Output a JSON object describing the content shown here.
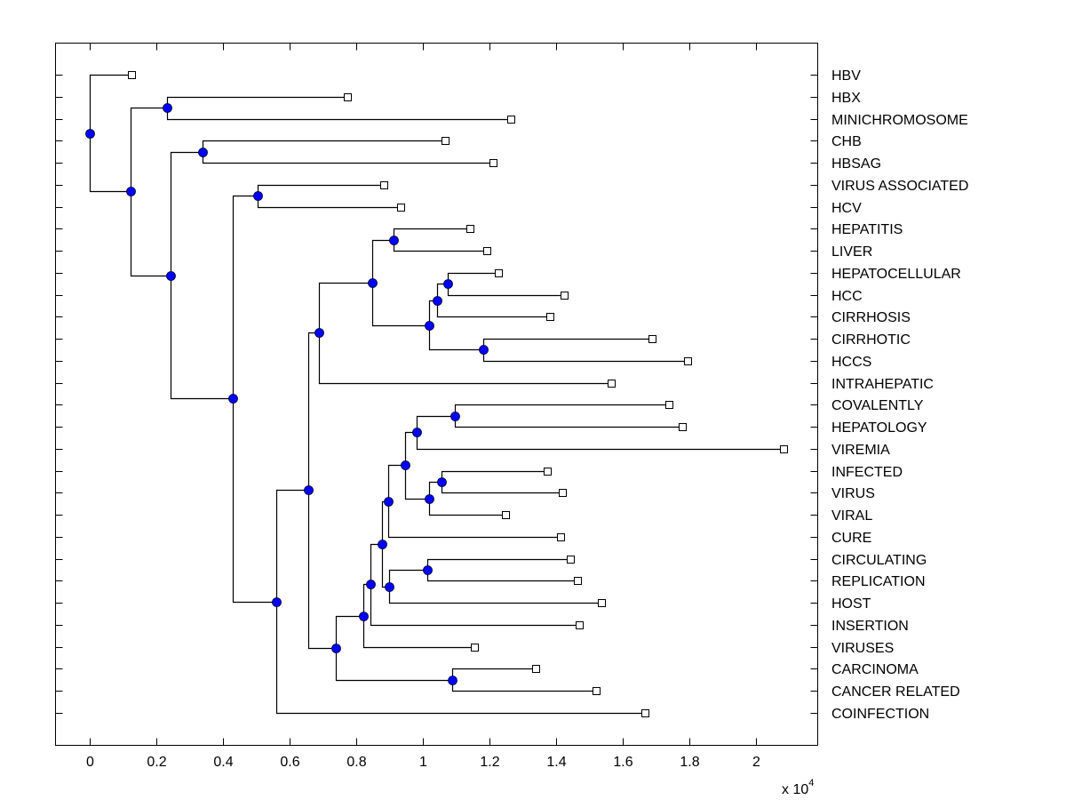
{
  "chart_data": {
    "type": "dendrogram",
    "title": "",
    "xlabel": "",
    "x_multiplier": "x 10^4",
    "x_multiplier_base": "x 10",
    "x_multiplier_exp": "4",
    "xlim": [
      -0.1,
      2.19
    ],
    "x_ticks": [
      0,
      0.2,
      0.4,
      0.6,
      0.8,
      1,
      1.2,
      1.4,
      1.6,
      1.8,
      2
    ],
    "x_tick_labels": [
      "0",
      "0.2",
      "0.4",
      "0.6",
      "0.8",
      "1",
      "1.2",
      "1.4",
      "1.6",
      "1.8",
      "2"
    ],
    "grid": false,
    "leaf_color": "#ffffff",
    "node_color": "#0000ff",
    "line_color": "#000000",
    "leaves": [
      {
        "id": "HBV",
        "label": "HBV",
        "x": 0.125
      },
      {
        "id": "HBX",
        "label": "HBX",
        "x": 0.773
      },
      {
        "id": "MINI",
        "label": "MINICHROMOSOME",
        "x": 1.264
      },
      {
        "id": "CHB",
        "label": "CHB",
        "x": 1.067
      },
      {
        "id": "HBSAG",
        "label": "HBSAG",
        "x": 1.211
      },
      {
        "id": "VA",
        "label": "VIRUS ASSOCIATED",
        "x": 0.883
      },
      {
        "id": "HCV",
        "label": "HCV",
        "x": 0.933
      },
      {
        "id": "HEPATITIS",
        "label": "HEPATITIS",
        "x": 1.141
      },
      {
        "id": "LIVER",
        "label": "LIVER",
        "x": 1.192
      },
      {
        "id": "HEPC",
        "label": "HEPATOCELLULAR",
        "x": 1.227
      },
      {
        "id": "HCC",
        "label": "HCC",
        "x": 1.424
      },
      {
        "id": "CIRRHOSIS",
        "label": "CIRRHOSIS",
        "x": 1.381
      },
      {
        "id": "CIRRHOTIC",
        "label": "CIRRHOTIC",
        "x": 1.688
      },
      {
        "id": "HCCS",
        "label": "HCCS",
        "x": 1.795
      },
      {
        "id": "INTRA",
        "label": "INTRAHEPATIC",
        "x": 1.565
      },
      {
        "id": "COV",
        "label": "COVALENTLY",
        "x": 1.739
      },
      {
        "id": "HEPATOLOGY",
        "label": "HEPATOLOGY",
        "x": 1.779
      },
      {
        "id": "VIREMIA",
        "label": "VIREMIA",
        "x": 2.083
      },
      {
        "id": "INFECTED",
        "label": "INFECTED",
        "x": 1.373
      },
      {
        "id": "VIRUS",
        "label": "VIRUS",
        "x": 1.419
      },
      {
        "id": "VIRAL",
        "label": "VIRAL",
        "x": 1.248
      },
      {
        "id": "CURE",
        "label": "CURE",
        "x": 1.413
      },
      {
        "id": "CIRC",
        "label": "CIRCULATING",
        "x": 1.443
      },
      {
        "id": "REPL",
        "label": "REPLICATION",
        "x": 1.464
      },
      {
        "id": "HOST",
        "label": "HOST",
        "x": 1.536
      },
      {
        "id": "INSERTION",
        "label": "INSERTION",
        "x": 1.469
      },
      {
        "id": "VIRUSES",
        "label": "VIRUSES",
        "x": 1.155
      },
      {
        "id": "CARC",
        "label": "CARCINOMA",
        "x": 1.339
      },
      {
        "id": "CANCER",
        "label": "CANCER RELATED",
        "x": 1.52
      },
      {
        "id": "COINF",
        "label": "COINFECTION",
        "x": 1.667
      }
    ],
    "nodes": [
      {
        "id": "root",
        "x": 0,
        "children": [
          "HBV",
          "n1"
        ]
      },
      {
        "id": "n1",
        "x": 0.123,
        "children": [
          "n2",
          "n3"
        ]
      },
      {
        "id": "n2",
        "x": 0.232,
        "children": [
          "HBX",
          "MINI"
        ]
      },
      {
        "id": "n3",
        "x": 0.243,
        "children": [
          "n4",
          "n5"
        ]
      },
      {
        "id": "n4",
        "x": 0.339,
        "children": [
          "CHB",
          "HBSAG"
        ]
      },
      {
        "id": "n5",
        "x": 0.429,
        "children": [
          "n6",
          "n7"
        ]
      },
      {
        "id": "n6",
        "x": 0.504,
        "children": [
          "VA",
          "HCV"
        ]
      },
      {
        "id": "n7",
        "x": 0.56,
        "children": [
          "n8",
          "COINF"
        ]
      },
      {
        "id": "n8",
        "x": 0.656,
        "children": [
          "n9",
          "n16"
        ]
      },
      {
        "id": "n9",
        "x": 0.688,
        "children": [
          "n10",
          "INTRA"
        ]
      },
      {
        "id": "n10",
        "x": 0.848,
        "children": [
          "n11",
          "n12"
        ]
      },
      {
        "id": "n11",
        "x": 0.912,
        "children": [
          "HEPATITIS",
          "LIVER"
        ]
      },
      {
        "id": "n12",
        "x": 1.019,
        "children": [
          "n13",
          "n15"
        ]
      },
      {
        "id": "n13",
        "x": 1.043,
        "children": [
          "n14",
          "CIRRHOSIS"
        ]
      },
      {
        "id": "n14",
        "x": 1.075,
        "children": [
          "HEPC",
          "HCC"
        ]
      },
      {
        "id": "n15",
        "x": 1.181,
        "children": [
          "CIRRHOTIC",
          "HCCS"
        ]
      },
      {
        "id": "n16",
        "x": 0.739,
        "children": [
          "n17",
          "n28"
        ]
      },
      {
        "id": "n17",
        "x": 0.821,
        "children": [
          "n18",
          "VIRUSES"
        ]
      },
      {
        "id": "n18",
        "x": 0.843,
        "children": [
          "n19",
          "INSERTION"
        ]
      },
      {
        "id": "n19",
        "x": 0.877,
        "children": [
          "n20",
          "n26"
        ]
      },
      {
        "id": "n20",
        "x": 0.896,
        "children": [
          "n21",
          "CURE"
        ]
      },
      {
        "id": "n21",
        "x": 0.947,
        "children": [
          "n22",
          "n24"
        ]
      },
      {
        "id": "n22",
        "x": 0.981,
        "children": [
          "n23",
          "VIREMIA"
        ]
      },
      {
        "id": "n23",
        "x": 1.096,
        "children": [
          "COV",
          "HEPATOLOGY"
        ]
      },
      {
        "id": "n24",
        "x": 1.019,
        "children": [
          "n25",
          "VIRAL"
        ]
      },
      {
        "id": "n25",
        "x": 1.056,
        "children": [
          "INFECTED",
          "VIRUS"
        ]
      },
      {
        "id": "n26",
        "x": 0.899,
        "children": [
          "n27",
          "HOST"
        ]
      },
      {
        "id": "n27",
        "x": 1.013,
        "children": [
          "CIRC",
          "REPL"
        ]
      },
      {
        "id": "n28",
        "x": 1.088,
        "children": [
          "CARC",
          "CANCER"
        ]
      }
    ]
  }
}
